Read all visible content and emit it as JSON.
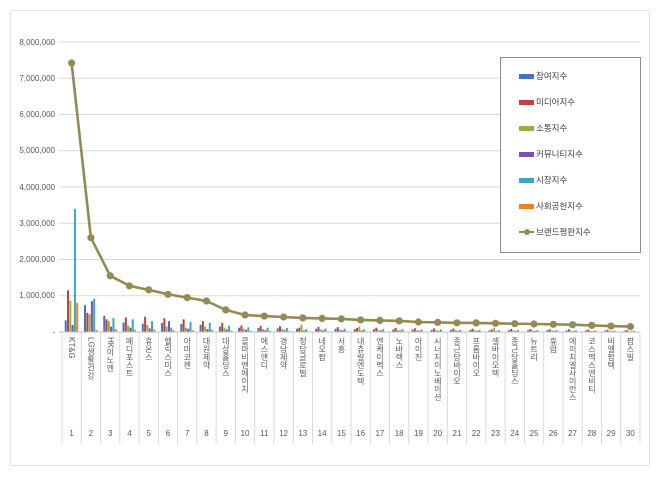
{
  "chart_data": {
    "type": "bar",
    "title": "",
    "xlabel": "",
    "ylabel": "",
    "ylim": [
      0,
      8000000
    ],
    "grid": true,
    "legend_position": "inside-top-right",
    "ytick_values": [
      0,
      1000000,
      2000000,
      3000000,
      4000000,
      5000000,
      6000000,
      7000000,
      8000000
    ],
    "ytick_labels": [
      "-",
      "1,000,000",
      "2,000,000",
      "3,000,000",
      "4,000,000",
      "5,000,000",
      "6,000,000",
      "7,000,000",
      "8,000,000"
    ],
    "categories": [
      "KT&G",
      "LG생활건강",
      "HK이노엔",
      "메디포스트",
      "휴온스",
      "헬릭스미스",
      "아미코젠",
      "대원제약",
      "대상홀딩스",
      "콜마비앤에이치",
      "에스앤디",
      "경남제약",
      "청담글로벌",
      "네오팜",
      "서흥",
      "내츄럴엔도텍",
      "엔케이맥스",
      "노바렉스",
      "아이진",
      "시너지이노베이션",
      "종근당바이오",
      "프롬바이오",
      "셀바이오텍",
      "종근당홀딩스",
      "뉴트리",
      "휴럼",
      "에이치엘사이언스",
      "코스맥스엔비티",
      "비엘팜텍",
      "팜스빌"
    ],
    "ranks": [
      "1",
      "2",
      "3",
      "4",
      "5",
      "6",
      "7",
      "8",
      "9",
      "10",
      "11",
      "12",
      "13",
      "14",
      "15",
      "16",
      "17",
      "18",
      "19",
      "20",
      "21",
      "22",
      "23",
      "24",
      "25",
      "26",
      "27",
      "28",
      "29",
      "30"
    ],
    "series": [
      {
        "name": "참여지수",
        "color": "#4472c4",
        "values": [
          320000,
          740000,
          450000,
          260000,
          230000,
          250000,
          220000,
          200000,
          150000,
          120000,
          110000,
          100000,
          90000,
          90000,
          85000,
          80000,
          75000,
          70000,
          65000,
          60000,
          60000,
          58000,
          45000,
          52000,
          50000,
          48000,
          45000,
          42000,
          38000,
          35000
        ]
      },
      {
        "name": "미디어지수",
        "color": "#c2413c",
        "values": [
          1150000,
          530000,
          350000,
          400000,
          420000,
          380000,
          350000,
          300000,
          250000,
          180000,
          170000,
          160000,
          120000,
          140000,
          135000,
          110000,
          120000,
          115000,
          105000,
          100000,
          95000,
          92000,
          70000,
          85000,
          82000,
          78000,
          75000,
          68000,
          60000,
          55000
        ]
      },
      {
        "name": "소통지수",
        "color": "#8db43e",
        "values": [
          860000,
          490000,
          300000,
          180000,
          200000,
          150000,
          120000,
          150000,
          120000,
          90000,
          80000,
          80000,
          200000,
          70000,
          65000,
          150000,
          60000,
          55000,
          50000,
          50000,
          48000,
          46000,
          120000,
          42000,
          40000,
          38000,
          36000,
          33000,
          30000,
          27000
        ]
      },
      {
        "name": "커뮤니티지수",
        "color": "#7b52a8",
        "values": [
          190000,
          850000,
          150000,
          120000,
          100000,
          300000,
          90000,
          80000,
          70000,
          60000,
          50000,
          50000,
          40000,
          45000,
          45000,
          40000,
          40000,
          38000,
          35000,
          33000,
          32000,
          30000,
          25000,
          28000,
          27000,
          26000,
          25000,
          22000,
          20000,
          18000
        ]
      },
      {
        "name": "시장지수",
        "color": "#35a8c8",
        "values": [
          3400000,
          920000,
          380000,
          350000,
          300000,
          120000,
          280000,
          250000,
          180000,
          130000,
          120000,
          110000,
          80000,
          95000,
          90000,
          70000,
          80000,
          75000,
          70000,
          65000,
          62000,
          60000,
          50000,
          55000,
          52000,
          50000,
          48000,
          43000,
          38000,
          35000
        ]
      },
      {
        "name": "사회공헌지수",
        "color": "#f07f26",
        "values": [
          800000,
          60000,
          80000,
          60000,
          70000,
          50000,
          50000,
          60000,
          40000,
          30000,
          30000,
          25000,
          20000,
          20000,
          20000,
          18000,
          15000,
          15000,
          12000,
          12000,
          12000,
          10000,
          10000,
          10000,
          10000,
          9000,
          9000,
          8000,
          7000,
          6000
        ]
      }
    ],
    "line_series": {
      "name": "브랜드평판지수",
      "color": "#948a54",
      "values": [
        7421000,
        2602000,
        1551000,
        1275000,
        1160000,
        1040000,
        950000,
        855000,
        610000,
        470000,
        440000,
        415000,
        390000,
        375000,
        360000,
        335000,
        320000,
        305000,
        275000,
        265000,
        255000,
        250000,
        240000,
        228000,
        222000,
        212000,
        202000,
        182000,
        162000,
        148000
      ]
    }
  },
  "legend": {
    "items": [
      "참여지수",
      "미디어지수",
      "소통지수",
      "커뮤니티지수",
      "시장지수",
      "사회공헌지수",
      "브랜드평판지수"
    ]
  },
  "colors": {
    "grid": "#d9d9d9",
    "axis": "#bfbfbf",
    "text": "#595959",
    "frame_border": "#e4e4e4",
    "legend_border": "#8c8c8c"
  }
}
